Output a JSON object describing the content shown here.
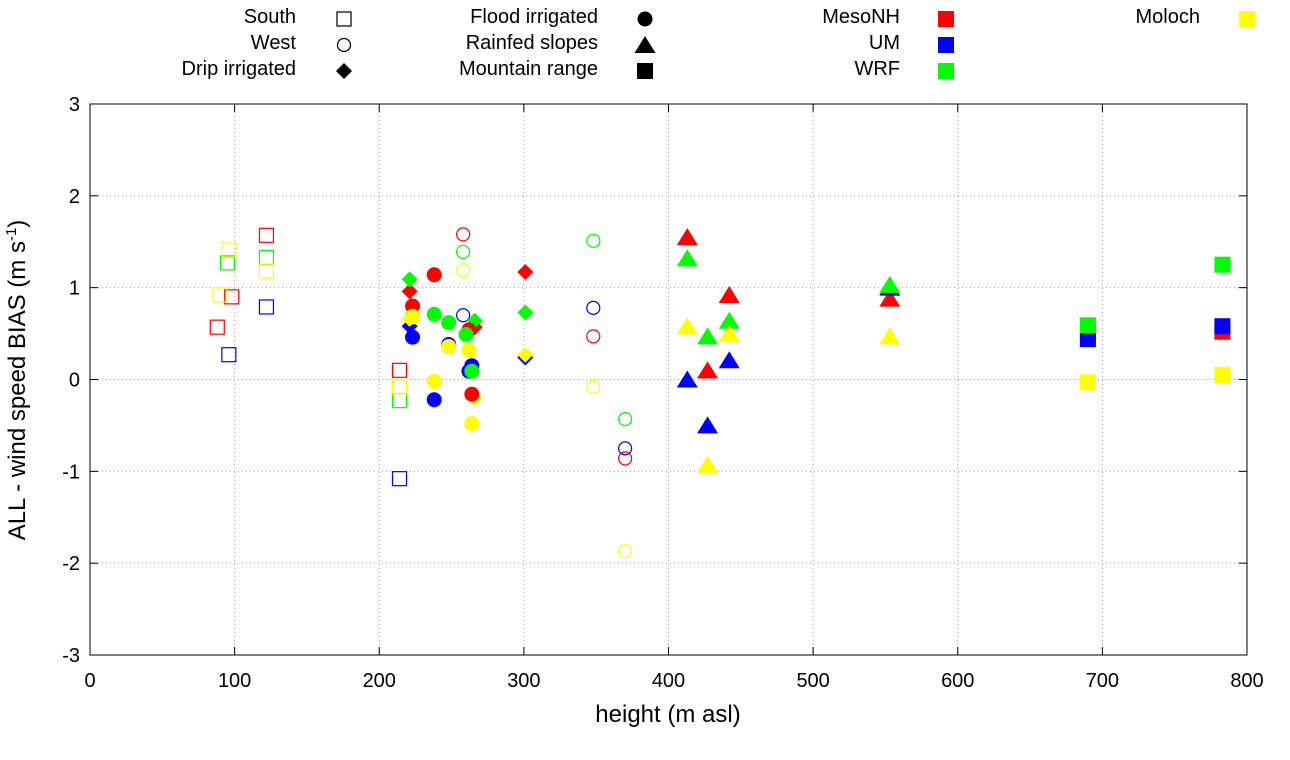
{
  "chart_data": {
    "type": "scatter",
    "xlabel": "height (m asl)",
    "ylabel": "ALL - wind speed BIAS (m s",
    "ylabel_sup": "-1",
    "ylabel_end": ")",
    "xlim": [
      0,
      800
    ],
    "ylim": [
      -3,
      3
    ],
    "xticks": [
      0,
      100,
      200,
      300,
      400,
      500,
      600,
      700,
      800
    ],
    "yticks": [
      -3,
      -2,
      -1,
      0,
      1,
      2,
      3
    ],
    "grid": true,
    "legend_placement": "top",
    "legend_shapes": [
      {
        "name": "South",
        "marker": "open-square"
      },
      {
        "name": "West",
        "marker": "open-circle"
      },
      {
        "name": "Drip irrigated",
        "marker": "diamond"
      },
      {
        "name": "Flood irrigated",
        "marker": "circle"
      },
      {
        "name": "Rainfed slopes",
        "marker": "triangle"
      },
      {
        "name": "Mountain range",
        "marker": "square"
      }
    ],
    "legend_models": [
      {
        "name": "MesoNH",
        "color": "#ff0000"
      },
      {
        "name": "UM",
        "color": "#0000ff"
      },
      {
        "name": "WRF",
        "color": "#00ff00"
      },
      {
        "name": "Moloch",
        "color": "#ffff00"
      }
    ],
    "series": [
      {
        "shape": "open-square",
        "model": "MesoNH",
        "points": [
          [
            88,
            0.57
          ],
          [
            98,
            0.9
          ],
          [
            122,
            1.57
          ],
          [
            214,
            0.1
          ]
        ]
      },
      {
        "shape": "open-square",
        "model": "UM",
        "points": [
          [
            96,
            0.27
          ],
          [
            122,
            0.79
          ],
          [
            214,
            -1.08
          ]
        ]
      },
      {
        "shape": "open-square",
        "model": "WRF",
        "points": [
          [
            95,
            1.27
          ],
          [
            122,
            1.33
          ],
          [
            214,
            -0.23
          ]
        ]
      },
      {
        "shape": "open-square",
        "model": "Moloch",
        "points": [
          [
            90,
            0.92
          ],
          [
            96,
            1.41
          ],
          [
            122,
            1.18
          ],
          [
            214,
            -0.08
          ]
        ]
      },
      {
        "shape": "open-circle",
        "model": "MesoNH",
        "points": [
          [
            258,
            1.58
          ],
          [
            370,
            -0.86
          ],
          [
            348,
            0.47
          ]
        ]
      },
      {
        "shape": "open-circle",
        "model": "UM",
        "points": [
          [
            258,
            0.7
          ],
          [
            370,
            -0.75
          ],
          [
            348,
            0.78
          ]
        ]
      },
      {
        "shape": "open-circle",
        "model": "WRF",
        "points": [
          [
            258,
            1.39
          ],
          [
            370,
            -0.43
          ],
          [
            348,
            1.51
          ]
        ]
      },
      {
        "shape": "open-circle",
        "model": "Moloch",
        "points": [
          [
            258,
            1.19
          ],
          [
            370,
            -1.87
          ],
          [
            348,
            -0.08
          ]
        ]
      },
      {
        "shape": "diamond",
        "model": "MesoNH",
        "points": [
          [
            221,
            0.96
          ],
          [
            266,
            0.57
          ],
          [
            301,
            1.17
          ]
        ]
      },
      {
        "shape": "diamond",
        "model": "UM",
        "points": [
          [
            221,
            0.58
          ],
          [
            301,
            0.24
          ]
        ]
      },
      {
        "shape": "diamond",
        "model": "WRF",
        "points": [
          [
            221,
            1.09
          ],
          [
            266,
            0.64
          ],
          [
            301,
            0.73
          ]
        ]
      },
      {
        "shape": "diamond",
        "model": "Moloch",
        "points": [
          [
            221,
            0.66
          ],
          [
            266,
            -0.2
          ],
          [
            301,
            0.27
          ]
        ]
      },
      {
        "shape": "circle",
        "model": "MesoNH",
        "points": [
          [
            223,
            0.8
          ],
          [
            238,
            1.14
          ],
          [
            248,
            0.38
          ],
          [
            262,
            0.54
          ],
          [
            264,
            -0.16
          ]
        ]
      },
      {
        "shape": "circle",
        "model": "UM",
        "points": [
          [
            223,
            0.46
          ],
          [
            238,
            -0.22
          ],
          [
            248,
            0.38
          ],
          [
            262,
            0.09
          ],
          [
            264,
            0.15
          ]
        ]
      },
      {
        "shape": "circle",
        "model": "WRF",
        "points": [
          [
            223,
            0.69
          ],
          [
            238,
            0.71
          ],
          [
            248,
            0.62
          ],
          [
            260,
            0.49
          ],
          [
            264,
            0.09
          ]
        ]
      },
      {
        "shape": "circle",
        "model": "Moloch",
        "points": [
          [
            223,
            0.68
          ],
          [
            238,
            -0.02
          ],
          [
            248,
            0.36
          ],
          [
            262,
            0.32
          ],
          [
            264,
            -0.48
          ]
        ]
      },
      {
        "shape": "triangle",
        "model": "MesoNH",
        "points": [
          [
            413,
            1.55
          ],
          [
            427,
            0.1
          ],
          [
            442,
            0.92
          ],
          [
            553,
            0.88
          ]
        ]
      },
      {
        "shape": "triangle",
        "model": "UM",
        "points": [
          [
            413,
            0.0
          ],
          [
            427,
            -0.5
          ],
          [
            442,
            0.21
          ],
          [
            553,
            1.0
          ]
        ]
      },
      {
        "shape": "triangle",
        "model": "WRF",
        "points": [
          [
            413,
            1.32
          ],
          [
            427,
            0.47
          ],
          [
            442,
            0.64
          ],
          [
            553,
            1.03
          ]
        ]
      },
      {
        "shape": "triangle",
        "model": "Moloch",
        "points": [
          [
            413,
            0.58
          ],
          [
            427,
            -0.93
          ],
          [
            442,
            0.5
          ],
          [
            553,
            0.47
          ]
        ]
      },
      {
        "shape": "square",
        "model": "MesoNH",
        "points": [
          [
            690,
            0.5
          ],
          [
            783,
            0.52
          ]
        ]
      },
      {
        "shape": "square",
        "model": "UM",
        "points": [
          [
            690,
            0.44
          ],
          [
            783,
            0.58
          ]
        ]
      },
      {
        "shape": "square",
        "model": "WRF",
        "points": [
          [
            690,
            0.59
          ],
          [
            783,
            1.25
          ]
        ]
      },
      {
        "shape": "square",
        "model": "Moloch",
        "points": [
          [
            690,
            -0.03
          ],
          [
            783,
            0.05
          ]
        ]
      }
    ]
  }
}
